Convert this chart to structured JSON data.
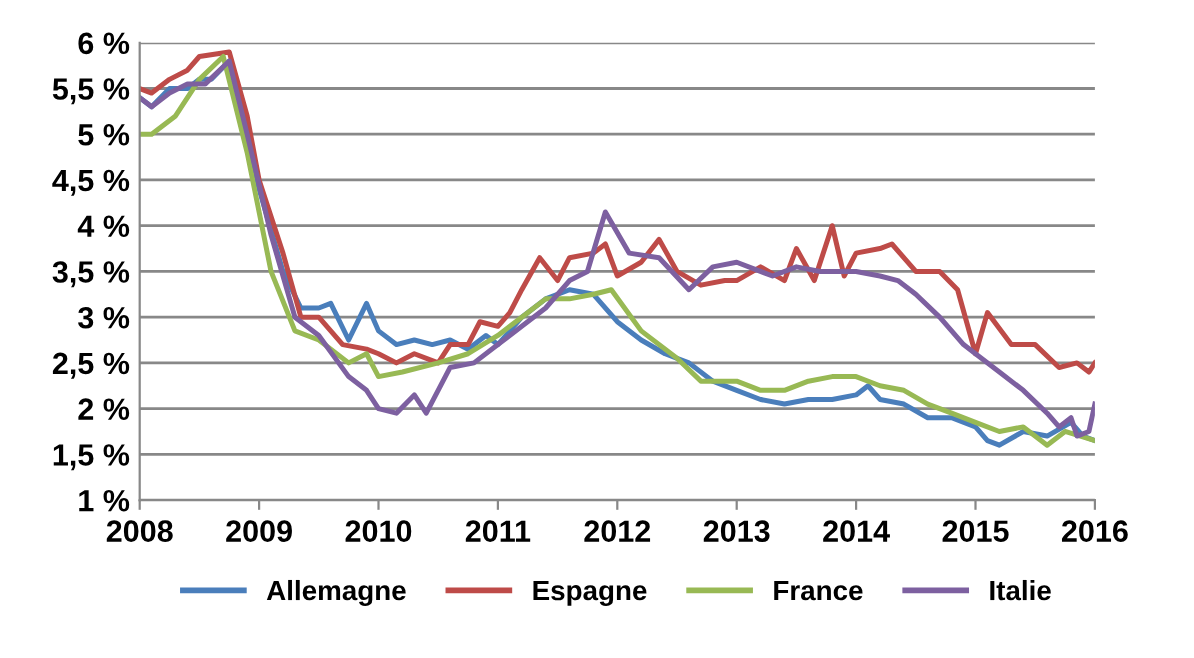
{
  "chart_data": {
    "type": "line",
    "xlim": [
      2008,
      2016
    ],
    "xticks": [
      2008,
      2009,
      2010,
      2011,
      2012,
      2013,
      2014,
      2015,
      2016
    ],
    "ylim": [
      1,
      6
    ],
    "yticks": [
      {
        "value": 1,
        "label": "1 %"
      },
      {
        "value": 1.5,
        "label": "1,5 %"
      },
      {
        "value": 2,
        "label": "2 %"
      },
      {
        "value": 2.5,
        "label": "2,5 %"
      },
      {
        "value": 3,
        "label": "3 %"
      },
      {
        "value": 3.5,
        "label": "3,5 %"
      },
      {
        "value": 4,
        "label": "4 %"
      },
      {
        "value": 4.5,
        "label": "4,5 %"
      },
      {
        "value": 5,
        "label": "5 %"
      },
      {
        "value": 5.5,
        "label": "5,5 %"
      },
      {
        "value": 6,
        "label": "6 %"
      }
    ],
    "grid": "y",
    "legend": "bottom",
    "marker": "none",
    "line_style": "solid",
    "series": [
      {
        "name": "Allemagne",
        "color": "#4a7ebb",
        "x": [
          2008.0,
          2008.1,
          2008.25,
          2008.4,
          2008.5,
          2008.6,
          2008.75,
          2008.9,
          2009.0,
          2009.2,
          2009.35,
          2009.5,
          2009.6,
          2009.75,
          2009.9,
          2010.0,
          2010.15,
          2010.3,
          2010.45,
          2010.6,
          2010.75,
          2010.9,
          2011.0,
          2011.2,
          2011.4,
          2011.6,
          2011.8,
          2012.0,
          2012.2,
          2012.4,
          2012.6,
          2012.8,
          2013.0,
          2013.2,
          2013.4,
          2013.6,
          2013.8,
          2014.0,
          2014.1,
          2014.2,
          2014.4,
          2014.6,
          2014.8,
          2015.0,
          2015.1,
          2015.2,
          2015.4,
          2015.6,
          2015.8,
          2015.9,
          2016.0
        ],
        "values": [
          5.4,
          5.3,
          5.5,
          5.5,
          5.6,
          5.6,
          5.8,
          5.0,
          4.4,
          3.5,
          3.1,
          3.1,
          3.15,
          2.75,
          3.15,
          2.85,
          2.7,
          2.75,
          2.7,
          2.75,
          2.65,
          2.8,
          2.7,
          3.0,
          3.2,
          3.3,
          3.25,
          2.95,
          2.75,
          2.6,
          2.5,
          2.3,
          2.2,
          2.1,
          2.05,
          2.1,
          2.1,
          2.15,
          2.25,
          2.1,
          2.05,
          1.9,
          1.9,
          1.8,
          1.65,
          1.6,
          1.75,
          1.7,
          1.85,
          1.7,
          1.65
        ]
      },
      {
        "name": "Espagne",
        "color": "#be4b48",
        "x": [
          2008.0,
          2008.1,
          2008.25,
          2008.4,
          2008.5,
          2008.75,
          2008.9,
          2009.0,
          2009.2,
          2009.35,
          2009.5,
          2009.7,
          2009.9,
          2010.0,
          2010.15,
          2010.3,
          2010.5,
          2010.6,
          2010.75,
          2010.85,
          2011.0,
          2011.1,
          2011.2,
          2011.35,
          2011.5,
          2011.6,
          2011.8,
          2011.9,
          2012.0,
          2012.2,
          2012.35,
          2012.5,
          2012.7,
          2012.9,
          2013.0,
          2013.2,
          2013.4,
          2013.5,
          2013.65,
          2013.8,
          2013.9,
          2014.0,
          2014.2,
          2014.3,
          2014.5,
          2014.7,
          2014.85,
          2015.0,
          2015.1,
          2015.3,
          2015.5,
          2015.7,
          2015.85,
          2015.95,
          2016.0
        ],
        "values": [
          5.5,
          5.45,
          5.6,
          5.7,
          5.85,
          5.9,
          5.2,
          4.5,
          3.7,
          3.0,
          3.0,
          2.7,
          2.65,
          2.6,
          2.5,
          2.6,
          2.5,
          2.7,
          2.7,
          2.95,
          2.9,
          3.05,
          3.3,
          3.65,
          3.4,
          3.65,
          3.7,
          3.8,
          3.45,
          3.6,
          3.85,
          3.5,
          3.35,
          3.4,
          3.4,
          3.55,
          3.4,
          3.75,
          3.4,
          4.0,
          3.45,
          3.7,
          3.75,
          3.8,
          3.5,
          3.5,
          3.3,
          2.6,
          3.05,
          2.7,
          2.7,
          2.45,
          2.5,
          2.4,
          2.5
        ]
      },
      {
        "name": "France",
        "color": "#98b954",
        "x": [
          2008.0,
          2008.1,
          2008.3,
          2008.5,
          2008.7,
          2008.9,
          2009.1,
          2009.3,
          2009.5,
          2009.75,
          2009.9,
          2010.0,
          2010.2,
          2010.5,
          2010.75,
          2011.0,
          2011.2,
          2011.4,
          2011.6,
          2011.8,
          2011.95,
          2012.2,
          2012.5,
          2012.7,
          2013.0,
          2013.2,
          2013.4,
          2013.6,
          2013.8,
          2014.0,
          2014.2,
          2014.4,
          2014.6,
          2014.8,
          2015.0,
          2015.2,
          2015.4,
          2015.6,
          2015.75,
          2016.0
        ],
        "values": [
          5.0,
          5.0,
          5.2,
          5.6,
          5.85,
          4.8,
          3.5,
          2.85,
          2.75,
          2.5,
          2.6,
          2.35,
          2.4,
          2.5,
          2.6,
          2.8,
          3.0,
          3.2,
          3.2,
          3.25,
          3.3,
          2.85,
          2.55,
          2.3,
          2.3,
          2.2,
          2.2,
          2.3,
          2.35,
          2.35,
          2.25,
          2.2,
          2.05,
          1.95,
          1.85,
          1.75,
          1.8,
          1.6,
          1.75,
          1.65
        ]
      },
      {
        "name": "Italie",
        "color": "#7d60a0",
        "x": [
          2008.0,
          2008.1,
          2008.25,
          2008.4,
          2008.55,
          2008.75,
          2008.9,
          2009.1,
          2009.3,
          2009.5,
          2009.75,
          2009.9,
          2010.0,
          2010.15,
          2010.3,
          2010.4,
          2010.6,
          2010.8,
          2011.0,
          2011.2,
          2011.4,
          2011.6,
          2011.75,
          2011.9,
          2012.1,
          2012.35,
          2012.6,
          2012.8,
          2013.0,
          2013.3,
          2013.5,
          2013.7,
          2014.0,
          2014.2,
          2014.35,
          2014.5,
          2014.7,
          2014.9,
          2015.0,
          2015.2,
          2015.4,
          2015.6,
          2015.7,
          2015.8,
          2015.85,
          2015.95,
          2016.0
        ],
        "values": [
          5.4,
          5.3,
          5.45,
          5.55,
          5.55,
          5.8,
          5.0,
          3.9,
          3.0,
          2.8,
          2.35,
          2.2,
          2.0,
          1.95,
          2.15,
          1.95,
          2.45,
          2.5,
          2.7,
          2.9,
          3.1,
          3.4,
          3.5,
          4.15,
          3.7,
          3.65,
          3.3,
          3.55,
          3.6,
          3.45,
          3.55,
          3.5,
          3.5,
          3.45,
          3.4,
          3.25,
          3.0,
          2.7,
          2.6,
          2.4,
          2.2,
          1.95,
          1.8,
          1.9,
          1.7,
          1.75,
          2.05
        ]
      }
    ]
  }
}
